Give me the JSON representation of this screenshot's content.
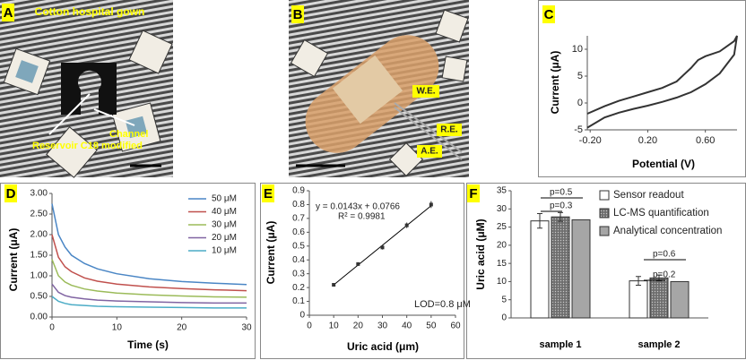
{
  "photos": {
    "a": {
      "label": "A",
      "title": "Cotton hospital gown",
      "reservoir": "Reservoir C18 modified",
      "channel": "Channel"
    },
    "b": {
      "label": "B",
      "we": "W.E.",
      "re": "R.E.",
      "ae": "A.E."
    }
  },
  "chart_data": [
    {
      "type": "line",
      "panel": "C",
      "ylabel": "Current (μA)",
      "xlabel": "Potential (V)",
      "x": [
        -0.22,
        -0.1,
        0.0,
        0.1,
        0.2,
        0.3,
        0.4,
        0.5,
        0.55,
        0.6,
        0.7,
        0.8,
        0.82,
        0.8,
        0.7,
        0.6,
        0.5,
        0.4,
        0.3,
        0.2,
        0.1,
        0.0,
        -0.1,
        -0.22
      ],
      "series": [
        {
          "color": "#333333",
          "values": [
            -2,
            -0.6,
            0.4,
            1.2,
            2,
            2.8,
            4,
            6.5,
            8,
            8.7,
            9.6,
            11.5,
            12.5,
            9,
            5.5,
            3.5,
            2,
            1,
            0.2,
            -0.5,
            -1.1,
            -1.8,
            -2.7,
            -4.6
          ]
        }
      ],
      "xlim": [
        -0.22,
        0.82
      ],
      "ylim": [
        -5,
        12.5
      ],
      "xticks": [
        {
          "value": -0.2,
          "label": "-0.20"
        },
        {
          "value": 0.2,
          "label": "0.20"
        },
        {
          "value": 0.6,
          "label": "0.60"
        }
      ],
      "yticks": [
        -5,
        0,
        5,
        10
      ]
    },
    {
      "type": "line",
      "panel": "D",
      "ylabel": "Current (μA)",
      "xlabel": "Time (s)",
      "x": [
        0,
        1,
        2,
        3,
        5,
        7,
        10,
        15,
        20,
        25,
        30
      ],
      "series": [
        {
          "name": "50 μM",
          "color": "#4a86c5",
          "values": [
            2.75,
            2.0,
            1.7,
            1.5,
            1.3,
            1.17,
            1.05,
            0.93,
            0.86,
            0.82,
            0.79
          ]
        },
        {
          "name": "40 μM",
          "color": "#c0504d",
          "values": [
            2.0,
            1.45,
            1.22,
            1.1,
            0.95,
            0.87,
            0.8,
            0.73,
            0.69,
            0.66,
            0.64
          ]
        },
        {
          "name": "30 μM",
          "color": "#9bbb59",
          "values": [
            1.4,
            1.0,
            0.85,
            0.77,
            0.68,
            0.63,
            0.58,
            0.54,
            0.51,
            0.49,
            0.48
          ]
        },
        {
          "name": "20 μM",
          "color": "#8064a2",
          "values": [
            0.8,
            0.6,
            0.52,
            0.48,
            0.44,
            0.41,
            0.39,
            0.37,
            0.35,
            0.34,
            0.34
          ]
        },
        {
          "name": "10 μM",
          "color": "#4bacc6",
          "values": [
            0.5,
            0.38,
            0.33,
            0.3,
            0.28,
            0.26,
            0.25,
            0.24,
            0.23,
            0.22,
            0.22
          ]
        }
      ],
      "xlim": [
        0,
        30
      ],
      "ylim": [
        0,
        3
      ],
      "xticks": [
        0,
        10,
        20,
        30
      ],
      "yticks": [
        {
          "value": 0,
          "label": "0.00"
        },
        {
          "value": 0.5,
          "label": "0.50"
        },
        {
          "value": 1,
          "label": "1.00"
        },
        {
          "value": 1.5,
          "label": "1.50"
        },
        {
          "value": 2,
          "label": "2.00"
        },
        {
          "value": 2.5,
          "label": "2.50"
        },
        {
          "value": 3,
          "label": "3.00"
        }
      ],
      "legend": "right"
    },
    {
      "type": "scatter",
      "panel": "E",
      "ylabel": "Current (μA)",
      "xlabel": "Uric acid (μm)",
      "x": [
        10,
        20,
        30,
        40,
        50
      ],
      "values": [
        0.22,
        0.37,
        0.49,
        0.65,
        0.8
      ],
      "errors": [
        0.01,
        0.012,
        0.015,
        0.02,
        0.025
      ],
      "color": "#333333",
      "trendline": {
        "slope": 0.0143,
        "intercept": 0.0766
      },
      "annotations": [
        "y = 0.0143x + 0.0766",
        "R² = 0.9981",
        "LOD=0.8 μM"
      ],
      "xlim": [
        0,
        60
      ],
      "ylim": [
        0,
        0.9
      ],
      "xticks": [
        0,
        10,
        20,
        30,
        40,
        50,
        60
      ],
      "yticks": [
        0,
        0.1,
        0.2,
        0.3,
        0.4,
        0.5,
        0.6,
        0.7,
        0.8,
        0.9
      ]
    },
    {
      "type": "bar",
      "panel": "F",
      "ylabel": "Uric acid (μM)",
      "categories": [
        "sample 1",
        "sample 2"
      ],
      "series": [
        {
          "name": "Sensor readout",
          "color": "#ffffff",
          "values": [
            26.7,
            10.2
          ],
          "errors": [
            2,
            1.2
          ]
        },
        {
          "name": "LC-MS quantification",
          "color": "#6e6e6e",
          "pattern": "dots",
          "values": [
            27.8,
            11
          ],
          "errors": [
            1.2,
            0.8
          ]
        },
        {
          "name": "Analytical concentration",
          "color": "#a6a6a6",
          "values": [
            27,
            10
          ]
        }
      ],
      "annotations": [
        "p=0.5",
        "p=0.3",
        "p=0.6",
        "p=0.2"
      ],
      "ylim": [
        0,
        35
      ],
      "yticks": [
        0,
        5,
        10,
        15,
        20,
        25,
        30,
        35
      ]
    }
  ]
}
